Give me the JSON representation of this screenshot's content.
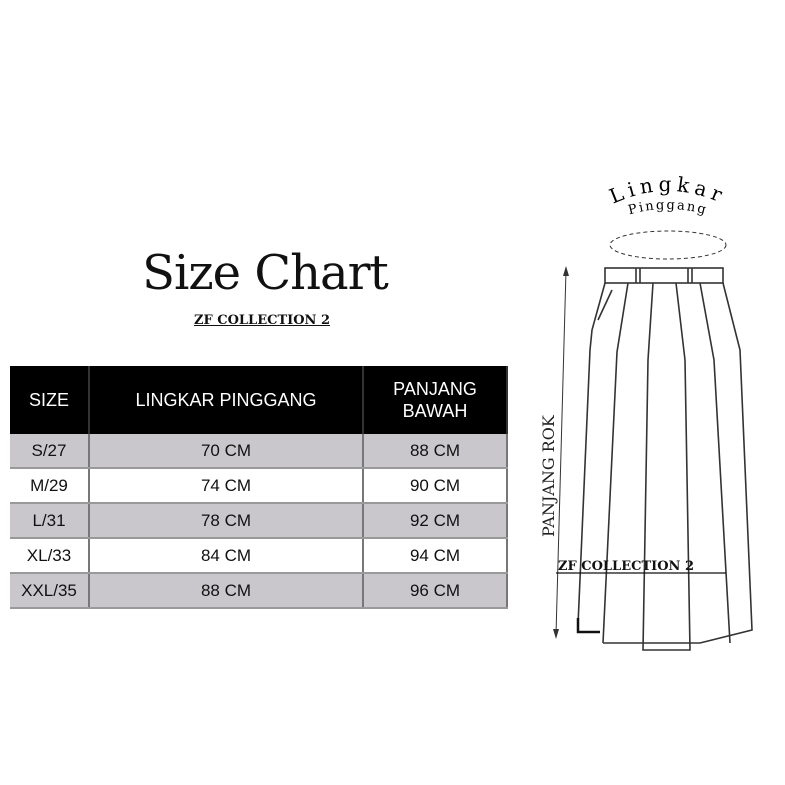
{
  "title": "Size Chart",
  "brand": "ZF  COLLECTION 2",
  "table": {
    "headers": [
      "SIZE",
      "LINGKAR PINGGANG",
      "PANJANG BAWAH"
    ],
    "rows": [
      [
        "S/27",
        "70 CM",
        "88 CM"
      ],
      [
        "M/29",
        "74 CM",
        "90 CM"
      ],
      [
        "L/31",
        "78 CM",
        "92 CM"
      ],
      [
        "XL/33",
        "84 CM",
        "94 CM"
      ],
      [
        "XXL/35",
        "88 CM",
        "96 CM"
      ]
    ]
  },
  "diagram": {
    "waist_label_line1": "Lingkar",
    "waist_label_line2": "Pinggang",
    "length_label": "PANJANG ROK",
    "brand": "ZF  COLLECTION 2"
  },
  "colors": {
    "header_bg": "#000000",
    "row_alt": "#c9c7cb"
  }
}
